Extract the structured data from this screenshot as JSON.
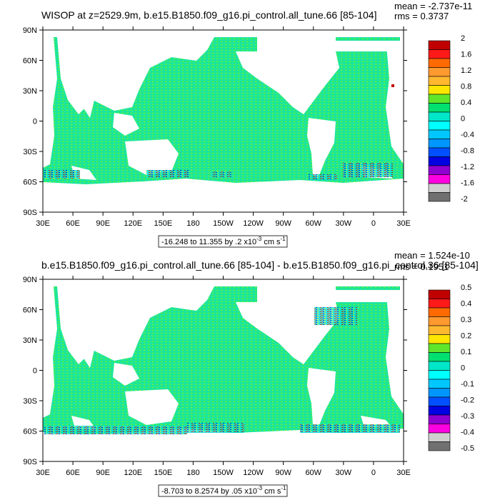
{
  "panels": [
    {
      "title": "WISOP at z=2529.9m, b.e15.B1850.f09_g16.pi_control.all_tune.66 [85-104]",
      "mean_label": "mean = -2.737e-11",
      "rms_label": "rms = 0.3737",
      "range_label": "-16.248 to 11.355 by .2 x10",
      "range_exp": "-3",
      "range_unit": "cm s",
      "range_unit_exp": "-1",
      "legend": [
        "2",
        "1.6",
        "1.2",
        "0.8",
        "0.4",
        "0",
        "-0.4",
        "-0.8",
        "-1.2",
        "-1.6",
        "-2"
      ]
    },
    {
      "title": "b.e15.B1850.f09_g16.pi_control.all_tune.66 [85-104] - b.e15.B1850.f09_g16.pi_control.36 [85-104]",
      "mean_label": "mean = 1.524e-10",
      "rms_label": "rms = 0.1951",
      "range_label": "-8.703 to 8.2574 by .05 x10",
      "range_exp": "-3",
      "range_unit": "cm s",
      "range_unit_exp": "-1",
      "legend": [
        "0.5",
        "0.4",
        "0.3",
        "0.2",
        "0.1",
        "0",
        "-0.1",
        "-0.2",
        "-0.3",
        "-0.4",
        "-0.5"
      ]
    }
  ],
  "lat_labels": [
    "90N",
    "60N",
    "30N",
    "0",
    "30S",
    "60S",
    "90S"
  ],
  "lon_labels": [
    "30E",
    "60E",
    "90E",
    "120E",
    "150E",
    "180",
    "150W",
    "120W",
    "90W",
    "60W",
    "30W",
    "0",
    "30E"
  ],
  "colorbar_colors": [
    "#c00000",
    "#ff1a1a",
    "#ff6a00",
    "#ff9a30",
    "#ffb830",
    "#ffe600",
    "#5fe62a",
    "#00e070",
    "#00e6c8",
    "#00ffff",
    "#00c8ff",
    "#0096ff",
    "#0050ff",
    "#0000e0",
    "#9000d0",
    "#ff00e0",
    "#cfcfcf",
    "#707070"
  ]
}
